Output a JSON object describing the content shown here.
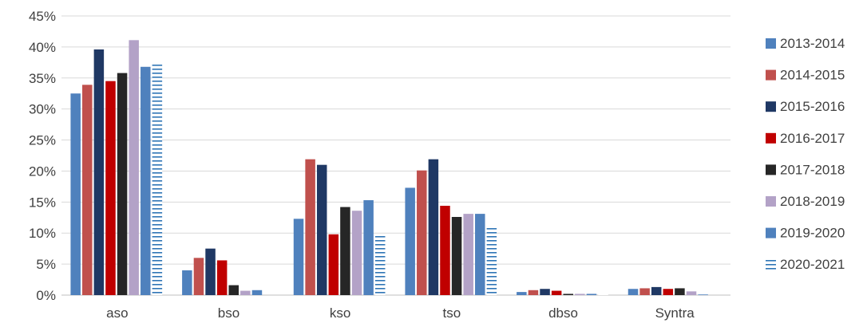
{
  "chart_data": {
    "type": "bar",
    "title": "",
    "xlabel": "",
    "ylabel": "",
    "ylim": [
      0,
      45
    ],
    "y_ticks": [
      "0%",
      "5%",
      "10%",
      "15%",
      "20%",
      "25%",
      "30%",
      "35%",
      "40%",
      "45%"
    ],
    "grid": "horizontal",
    "legend_position": "right",
    "categories": [
      "aso",
      "bso",
      "kso",
      "tso",
      "dbso",
      "Syntra"
    ],
    "series": [
      {
        "name": "2013-2014",
        "color": "#4F81BD",
        "pattern": "solid",
        "values": [
          32.5,
          4.0,
          12.3,
          17.3,
          0.5,
          1.0
        ]
      },
      {
        "name": "2014-2015",
        "color": "#C0504D",
        "pattern": "solid",
        "values": [
          33.9,
          6.0,
          21.9,
          20.1,
          0.8,
          1.1
        ]
      },
      {
        "name": "2015-2016",
        "color": "#1F3864",
        "pattern": "solid",
        "values": [
          39.6,
          7.5,
          21.0,
          21.9,
          1.0,
          1.3
        ]
      },
      {
        "name": "2016-2017",
        "color": "#C00000",
        "pattern": "solid",
        "values": [
          34.5,
          5.6,
          9.8,
          14.4,
          0.7,
          1.0
        ]
      },
      {
        "name": "2017-2018",
        "color": "#262626",
        "pattern": "solid",
        "values": [
          35.8,
          1.6,
          14.2,
          12.6,
          0.2,
          1.1
        ]
      },
      {
        "name": "2018-2019",
        "color": "#B3A2C7",
        "pattern": "solid",
        "values": [
          41.1,
          0.7,
          13.6,
          13.1,
          0.2,
          0.6
        ]
      },
      {
        "name": "2019-2020",
        "color": "#4F81BD",
        "pattern": "solid",
        "values": [
          36.8,
          0.8,
          15.3,
          13.1,
          0.2,
          0.1
        ]
      },
      {
        "name": "2020-2021",
        "color": "#2E75B6",
        "pattern": "dashes",
        "values": [
          37.3,
          0.0,
          9.7,
          11.1,
          0.1,
          0.0
        ]
      }
    ]
  }
}
